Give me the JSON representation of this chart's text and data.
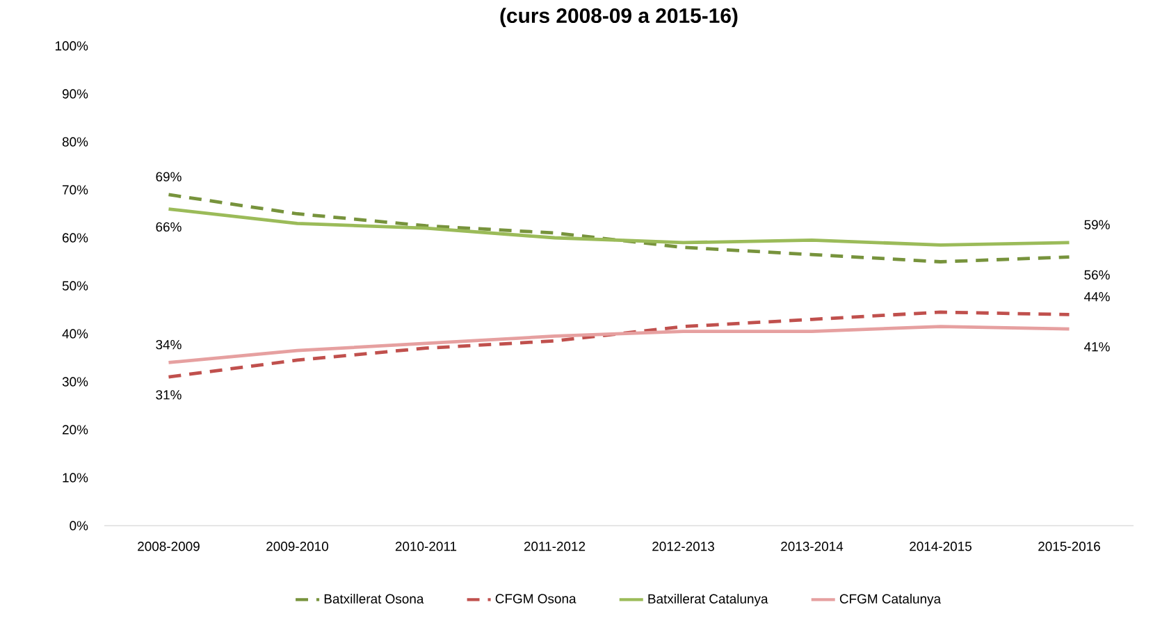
{
  "chart_data": {
    "type": "line",
    "title": "(curs 2008-09 a 2015-16)",
    "categories": [
      "2008-2009",
      "2009-2010",
      "2010-2011",
      "2011-2012",
      "2012-2013",
      "2013-2014",
      "2014-2015",
      "2015-2016"
    ],
    "series": [
      {
        "name": "Batxillerat Osona",
        "color": "#77933c",
        "line_style": "dashed",
        "values": [
          69,
          65,
          62.5,
          61,
          58,
          56.5,
          55,
          56
        ],
        "value_labels": [
          "69%",
          null,
          null,
          null,
          null,
          null,
          null,
          "56%"
        ]
      },
      {
        "name": "CFGM Osona",
        "color": "#c0504d",
        "line_style": "dashed",
        "values": [
          31,
          34.5,
          37,
          38.5,
          41.5,
          43,
          44.5,
          44
        ],
        "value_labels": [
          "31%",
          null,
          null,
          null,
          null,
          null,
          null,
          "44%"
        ]
      },
      {
        "name": "Batxillerat Catalunya",
        "color": "#9bbb59",
        "line_style": "solid",
        "values": [
          66,
          63,
          62,
          60,
          59,
          59.5,
          58.5,
          59
        ],
        "value_labels": [
          "66%",
          null,
          null,
          null,
          null,
          null,
          null,
          "59%"
        ]
      },
      {
        "name": "CFGM Catalunya",
        "color": "#e6a0a0",
        "line_style": "solid",
        "values": [
          34,
          36.5,
          38,
          39.5,
          40.5,
          40.5,
          41.5,
          41
        ],
        "value_labels": [
          "34%",
          null,
          null,
          null,
          null,
          null,
          null,
          "41%"
        ]
      }
    ],
    "ylim": [
      0,
      100
    ],
    "yticks": [
      {
        "value": 0,
        "label": "0%"
      },
      {
        "value": 10,
        "label": "10%"
      },
      {
        "value": 20,
        "label": "20%"
      },
      {
        "value": 30,
        "label": "30%"
      },
      {
        "value": 40,
        "label": "40%"
      },
      {
        "value": 50,
        "label": "50%"
      },
      {
        "value": 60,
        "label": "60%"
      },
      {
        "value": 70,
        "label": "70%"
      },
      {
        "value": 80,
        "label": "80%"
      },
      {
        "value": 90,
        "label": "90%"
      },
      {
        "value": 100,
        "label": "100%"
      }
    ],
    "grid": false,
    "legend": "bottom",
    "marker": "none"
  }
}
